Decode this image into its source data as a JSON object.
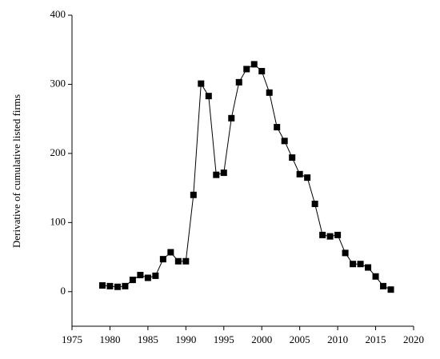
{
  "chart_data": {
    "type": "line",
    "y_label": "Derivative of cumulative listed firms",
    "x": [
      1979,
      1980,
      1981,
      1982,
      1983,
      1984,
      1985,
      1986,
      1987,
      1988,
      1989,
      1990,
      1991,
      1992,
      1993,
      1994,
      1995,
      1996,
      1997,
      1998,
      1999,
      2000,
      2001,
      2002,
      2003,
      2004,
      2005,
      2006,
      2007,
      2008,
      2009,
      2010,
      2011,
      2012,
      2013,
      2014,
      2015,
      2016,
      2017
    ],
    "values": [
      9,
      8,
      7,
      8,
      17,
      24,
      20,
      23,
      47,
      57,
      44,
      44,
      140,
      301,
      283,
      169,
      172,
      251,
      303,
      322,
      329,
      319,
      288,
      238,
      218,
      194,
      170,
      165,
      127,
      82,
      80,
      82,
      56,
      40,
      40,
      35,
      22,
      8,
      3
    ],
    "color": "#000000",
    "xlim": [
      1975,
      2020
    ],
    "xticks": [
      1975,
      1980,
      1985,
      1990,
      1995,
      2000,
      2005,
      2010,
      2015,
      2020
    ],
    "ylim": [
      -50,
      400
    ],
    "yticks": [
      0,
      100,
      200,
      300,
      400
    ]
  }
}
